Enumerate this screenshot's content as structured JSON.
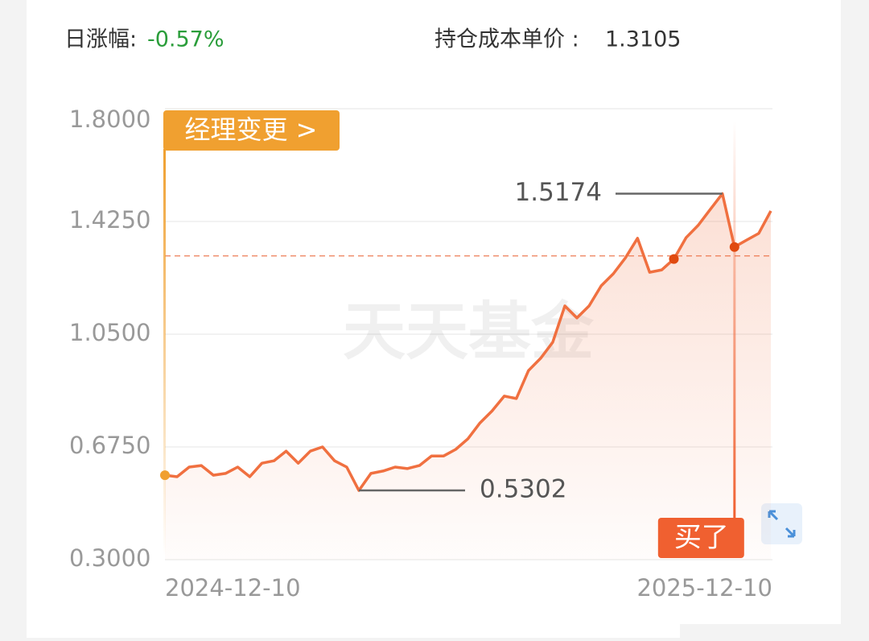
{
  "header": {
    "daily_change_label": "日涨幅:",
    "daily_change": "-0.57%",
    "cost_label": "持仓成本单价 :",
    "cost_price": 1.3105
  },
  "chart_data": {
    "type": "line",
    "watermark": "天天基金",
    "color": "#f07040",
    "categories": [
      "2024-12-10",
      null,
      null,
      null,
      null,
      null,
      null,
      null,
      null,
      null,
      null,
      null,
      null,
      null,
      null,
      null,
      null,
      null,
      null,
      null,
      null,
      null,
      null,
      null,
      null,
      null,
      null,
      null,
      null,
      null,
      null,
      null,
      null,
      null,
      null,
      null,
      null,
      null,
      null,
      null,
      null,
      null,
      null,
      null,
      null,
      null,
      null,
      null,
      null,
      null,
      "2025-12-10"
    ],
    "values": [
      0.581,
      0.576,
      0.608,
      0.613,
      0.581,
      0.587,
      0.608,
      0.576,
      0.621,
      0.629,
      0.661,
      0.621,
      0.661,
      0.675,
      0.629,
      0.608,
      0.5302,
      0.587,
      0.595,
      0.608,
      0.603,
      0.613,
      0.645,
      0.645,
      0.667,
      0.702,
      0.755,
      0.795,
      0.844,
      0.836,
      0.929,
      0.97,
      1.023,
      1.144,
      1.104,
      1.144,
      1.211,
      1.251,
      1.304,
      1.369,
      1.256,
      1.264,
      1.3,
      1.371,
      1.412,
      1.465,
      1.5174,
      1.34,
      1.363,
      1.385,
      1.46
    ],
    "ylim": [
      0.3,
      1.8
    ],
    "yticks": [
      {
        "value": 0.3,
        "label": "0.3000"
      },
      {
        "value": 0.675,
        "label": "0.6750"
      },
      {
        "value": 1.05,
        "label": "1.0500"
      },
      {
        "value": 1.425,
        "label": "1.4250"
      },
      {
        "value": 1.8,
        "label": "1.8000"
      }
    ],
    "grid": true,
    "manager_change_label": "经理变更 >",
    "buy_label": "买了"
  }
}
